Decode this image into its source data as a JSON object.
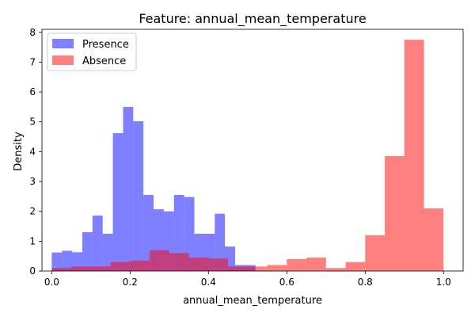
{
  "chart_data": {
    "type": "histogram",
    "title": "Feature: annual_mean_temperature",
    "xlabel": "annual_mean_temperature",
    "ylabel": "Density",
    "xlim": [
      -0.025,
      1.05
    ],
    "ylim": [
      0,
      8.1
    ],
    "xticks": [
      "0.0",
      "0.2",
      "0.4",
      "0.6",
      "0.8",
      "1.0"
    ],
    "xtick_values": [
      0.0,
      0.2,
      0.4,
      0.6,
      0.8,
      1.0
    ],
    "yticks": [
      "0",
      "1",
      "2",
      "3",
      "4",
      "5",
      "6",
      "7",
      "8"
    ],
    "ytick_values": [
      0,
      1,
      2,
      3,
      4,
      5,
      6,
      7,
      8
    ],
    "legend_position": "top-left",
    "series": [
      {
        "name": "Presence",
        "color": "#0000ff",
        "opacity": 0.5,
        "bins": [
          {
            "x0": 0.0,
            "x1": 0.026,
            "value": 0.62
          },
          {
            "x0": 0.026,
            "x1": 0.052,
            "value": 0.68
          },
          {
            "x0": 0.052,
            "x1": 0.078,
            "value": 0.63
          },
          {
            "x0": 0.078,
            "x1": 0.104,
            "value": 1.3
          },
          {
            "x0": 0.104,
            "x1": 0.13,
            "value": 1.86
          },
          {
            "x0": 0.13,
            "x1": 0.156,
            "value": 1.25
          },
          {
            "x0": 0.156,
            "x1": 0.182,
            "value": 4.62
          },
          {
            "x0": 0.182,
            "x1": 0.208,
            "value": 5.5
          },
          {
            "x0": 0.208,
            "x1": 0.234,
            "value": 5.02
          },
          {
            "x0": 0.234,
            "x1": 0.26,
            "value": 2.55
          },
          {
            "x0": 0.26,
            "x1": 0.286,
            "value": 2.07
          },
          {
            "x0": 0.286,
            "x1": 0.312,
            "value": 2.0
          },
          {
            "x0": 0.312,
            "x1": 0.338,
            "value": 2.55
          },
          {
            "x0": 0.338,
            "x1": 0.364,
            "value": 2.48
          },
          {
            "x0": 0.364,
            "x1": 0.39,
            "value": 1.25
          },
          {
            "x0": 0.39,
            "x1": 0.416,
            "value": 1.25
          },
          {
            "x0": 0.416,
            "x1": 0.442,
            "value": 1.92
          },
          {
            "x0": 0.442,
            "x1": 0.468,
            "value": 0.82
          },
          {
            "x0": 0.468,
            "x1": 0.494,
            "value": 0.2
          },
          {
            "x0": 0.494,
            "x1": 0.52,
            "value": 0.2
          }
        ]
      },
      {
        "name": "Absence",
        "color": "#ff0000",
        "opacity": 0.5,
        "bins": [
          {
            "x0": 0.0,
            "x1": 0.05,
            "value": 0.1
          },
          {
            "x0": 0.05,
            "x1": 0.1,
            "value": 0.15
          },
          {
            "x0": 0.1,
            "x1": 0.15,
            "value": 0.15
          },
          {
            "x0": 0.15,
            "x1": 0.2,
            "value": 0.3
          },
          {
            "x0": 0.2,
            "x1": 0.25,
            "value": 0.35
          },
          {
            "x0": 0.25,
            "x1": 0.3,
            "value": 0.7
          },
          {
            "x0": 0.3,
            "x1": 0.35,
            "value": 0.6
          },
          {
            "x0": 0.35,
            "x1": 0.4,
            "value": 0.45
          },
          {
            "x0": 0.4,
            "x1": 0.45,
            "value": 0.42
          },
          {
            "x0": 0.45,
            "x1": 0.5,
            "value": 0.15
          },
          {
            "x0": 0.5,
            "x1": 0.55,
            "value": 0.15
          },
          {
            "x0": 0.55,
            "x1": 0.6,
            "value": 0.2
          },
          {
            "x0": 0.6,
            "x1": 0.65,
            "value": 0.4
          },
          {
            "x0": 0.65,
            "x1": 0.7,
            "value": 0.45
          },
          {
            "x0": 0.7,
            "x1": 0.75,
            "value": 0.1
          },
          {
            "x0": 0.75,
            "x1": 0.8,
            "value": 0.3
          },
          {
            "x0": 0.8,
            "x1": 0.85,
            "value": 1.2
          },
          {
            "x0": 0.85,
            "x1": 0.9,
            "value": 3.85
          },
          {
            "x0": 0.9,
            "x1": 0.95,
            "value": 7.75
          },
          {
            "x0": 0.95,
            "x1": 1.0,
            "value": 2.1
          }
        ]
      }
    ]
  }
}
